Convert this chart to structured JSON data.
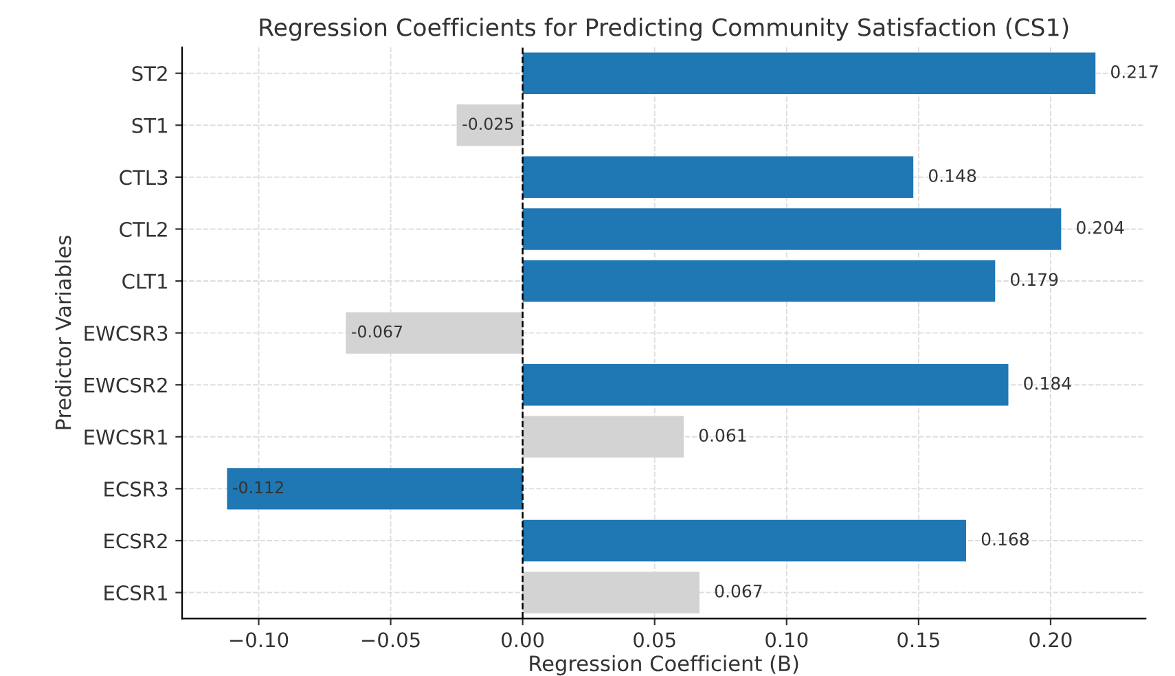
{
  "chart_data": {
    "type": "bar",
    "orientation": "horizontal",
    "title": "Regression Coefficients for Predicting Community Satisfaction (CS1)",
    "xlabel": "Regression Coefficient (B)",
    "ylabel": "Predictor Variables",
    "categories": [
      "ST2",
      "ST1",
      "CTL3",
      "CTL2",
      "CLT1",
      "EWCSR3",
      "EWCSR2",
      "EWCSR1",
      "ECSR3",
      "ECSR2",
      "ECSR1"
    ],
    "values": [
      0.217,
      -0.025,
      0.148,
      0.204,
      0.179,
      -0.067,
      0.184,
      0.061,
      -0.112,
      0.168,
      0.067
    ],
    "colors": [
      "#1f77b4",
      "#d3d3d3",
      "#1f77b4",
      "#1f77b4",
      "#1f77b4",
      "#d3d3d3",
      "#1f77b4",
      "#d3d3d3",
      "#1f77b4",
      "#1f77b4",
      "#d3d3d3"
    ],
    "data_labels": true,
    "xlim": [
      -0.129,
      0.236
    ],
    "xticks": [
      {
        "value": -0.1,
        "label": "−0.10"
      },
      {
        "value": -0.05,
        "label": "−0.05"
      },
      {
        "value": 0,
        "label": "0.00"
      },
      {
        "value": 0.05,
        "label": "0.05"
      },
      {
        "value": 0.1,
        "label": "0.10"
      },
      {
        "value": 0.15,
        "label": "0.15"
      },
      {
        "value": 0.2,
        "label": "0.20"
      }
    ],
    "ref_lines": [
      {
        "axis": "x",
        "value": 0,
        "color": "#000000",
        "line_style": "dashed"
      }
    ],
    "grid": true
  }
}
